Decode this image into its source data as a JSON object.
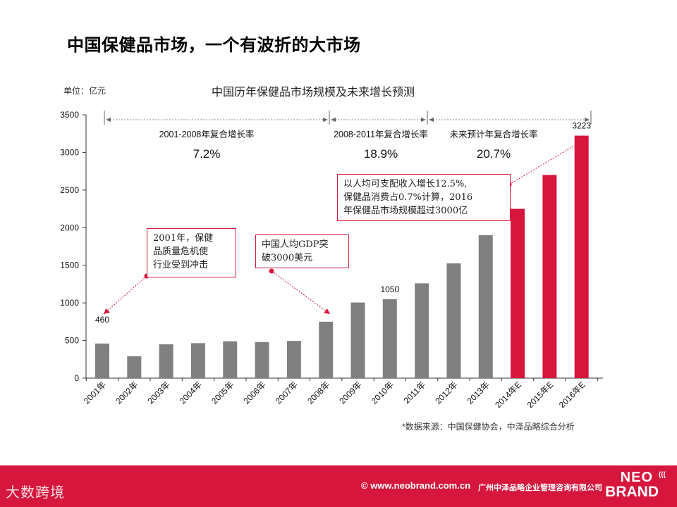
{
  "slide": {
    "title": "中国保健品市场，一个有波折的大市场",
    "unit": "单位：亿元",
    "source": "*数据来源：中国保健协会，中泽品略综合分析"
  },
  "chart_data": {
    "type": "bar",
    "title": "中国历年保健品市场规模及未来增长预测",
    "ylabel": "单位：亿元",
    "ylim": [
      0,
      3500
    ],
    "yticks": [
      0,
      500,
      1000,
      1500,
      2000,
      2500,
      3000,
      3500
    ],
    "categories": [
      "2001年",
      "2002年",
      "2003年",
      "2004年",
      "2005年",
      "2006年",
      "2007年",
      "2008年",
      "2009年",
      "2010年",
      "2011年",
      "2012年",
      "2013年",
      "2014年E",
      "2015年E",
      "2016年E"
    ],
    "values": [
      460,
      290,
      450,
      465,
      490,
      480,
      495,
      750,
      1005,
      1050,
      1260,
      1525,
      1900,
      2250,
      2700,
      3223
    ],
    "colors": [
      "#808080",
      "#808080",
      "#808080",
      "#808080",
      "#808080",
      "#808080",
      "#808080",
      "#808080",
      "#808080",
      "#808080",
      "#808080",
      "#808080",
      "#808080",
      "#d6163d",
      "#d6163d",
      "#d6163d"
    ],
    "data_labels": [
      {
        "index": 0,
        "text": "460"
      },
      {
        "index": 9,
        "text": "1050"
      },
      {
        "index": 15,
        "text": "3223"
      }
    ],
    "periods": [
      {
        "label": "2001-2008年复合增长率",
        "rate": "7.2%"
      },
      {
        "label": "2008-2011年复合增长率",
        "rate": "18.9%"
      },
      {
        "label": "未来预计年复合增长率",
        "rate": "20.7%"
      }
    ],
    "annotations": [
      "2001年，保健品质量危机使行业受到冲击",
      "中国人均GDP突破3000美元",
      "以人均可支配收入增长12.5%，保健品消费占0.7%计算，2016年保健品市场规模超过3000亿"
    ]
  },
  "callouts": {
    "c1": [
      "2001年，保健",
      "品质量危机使",
      "行业受到冲击"
    ],
    "c2": [
      "中国人均GDP突",
      "破3000美元"
    ],
    "c3": [
      "以人均可支配收入增长12.5%,",
      "保健品消费占0.7%计算，2016",
      "年保健品市场规模超过3000亿"
    ]
  },
  "footer": {
    "left_logo": "大数跨境",
    "website": "© www.neobrand.com.cn",
    "company": "广州中泽品略企业管理咨询有限公司",
    "brand_line1": "NEO",
    "brand_line2": "BRAND",
    "brand_mark": "(((",
    "accent": "#d6163d"
  }
}
